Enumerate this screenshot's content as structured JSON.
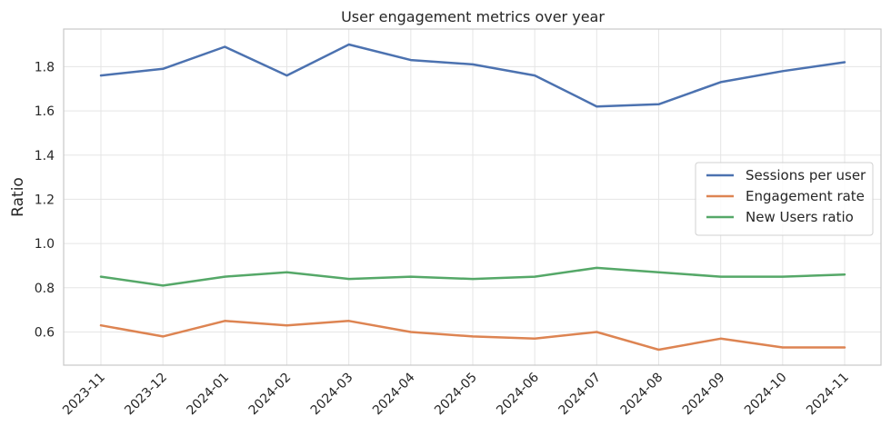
{
  "chart_data": {
    "type": "line",
    "title": "User engagement metrics over year",
    "xlabel": "",
    "ylabel": "Ratio",
    "categories": [
      "2023-11",
      "2023-12",
      "2024-01",
      "2024-02",
      "2024-03",
      "2024-04",
      "2024-05",
      "2024-06",
      "2024-07",
      "2024-08",
      "2024-09",
      "2024-10",
      "2024-11"
    ],
    "yticks": [
      0.6,
      0.8,
      1.0,
      1.2,
      1.4,
      1.6,
      1.8
    ],
    "ytick_labels": [
      "0.6",
      "0.8",
      "1.0",
      "1.2",
      "1.4",
      "1.6",
      "1.8"
    ],
    "ylim": [
      0.45,
      1.97
    ],
    "grid": true,
    "legend_position": "center-right",
    "series": [
      {
        "name": "Sessions per user",
        "color": "#4c72b0",
        "values": [
          1.76,
          1.79,
          1.89,
          1.76,
          1.9,
          1.83,
          1.81,
          1.76,
          1.62,
          1.63,
          1.73,
          1.78,
          1.82
        ]
      },
      {
        "name": "Engagement rate",
        "color": "#dd8452",
        "values": [
          0.63,
          0.58,
          0.65,
          0.63,
          0.65,
          0.6,
          0.58,
          0.57,
          0.6,
          0.52,
          0.57,
          0.53,
          0.53
        ]
      },
      {
        "name": "New Users ratio",
        "color": "#55a868",
        "values": [
          0.85,
          0.81,
          0.85,
          0.87,
          0.84,
          0.85,
          0.84,
          0.85,
          0.89,
          0.87,
          0.85,
          0.85,
          0.86
        ]
      }
    ]
  }
}
